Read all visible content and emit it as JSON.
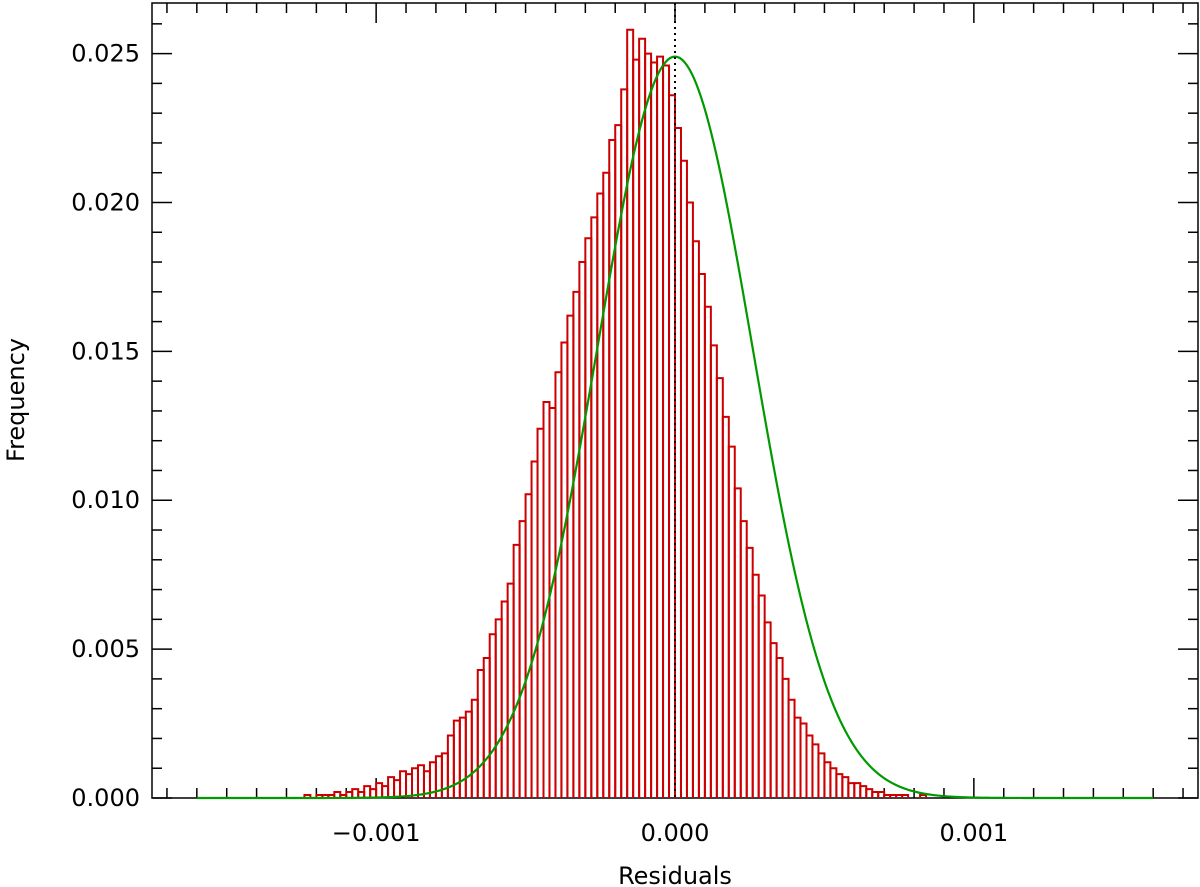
{
  "chart_data": {
    "type": "bar",
    "xlabel": "Residuals",
    "ylabel": "Frequency",
    "xlim": [
      -0.00175,
      0.00175
    ],
    "ylim": [
      0.0,
      0.0267
    ],
    "x_ticks": [
      {
        "value": -0.001,
        "label": "−0.001"
      },
      {
        "value": 0.0,
        "label": "0.000"
      },
      {
        "value": 0.001,
        "label": "0.001"
      }
    ],
    "y_ticks": [
      {
        "value": 0.0,
        "label": "0.000"
      },
      {
        "value": 0.005,
        "label": "0.005"
      },
      {
        "value": 0.01,
        "label": "0.010"
      },
      {
        "value": 0.015,
        "label": "0.015"
      },
      {
        "value": 0.02,
        "label": "0.020"
      },
      {
        "value": 0.025,
        "label": "0.025"
      }
    ],
    "histogram": {
      "color": "#cc0000",
      "bin_width": 2e-05,
      "bin_start": -0.0016,
      "values": [
        0.0,
        0.0,
        0.0,
        0.0,
        0.0,
        0.0,
        0.0,
        0.0,
        0.0,
        0.0,
        0.0,
        0.0,
        0.0,
        0.0,
        0.0,
        0.0,
        0.0,
        0.0,
        0.0001,
        0.0,
        0.0001,
        0.0001,
        0.0001,
        0.0002,
        0.0001,
        0.0002,
        0.0003,
        0.0002,
        0.0004,
        0.0003,
        0.0005,
        0.0004,
        0.0007,
        0.0006,
        0.0009,
        0.0008,
        0.001,
        0.0011,
        0.0009,
        0.0012,
        0.0014,
        0.0015,
        0.0021,
        0.0026,
        0.0027,
        0.0029,
        0.0033,
        0.0043,
        0.0047,
        0.0055,
        0.006,
        0.0066,
        0.0072,
        0.0085,
        0.0093,
        0.0102,
        0.0113,
        0.0124,
        0.0133,
        0.0131,
        0.0143,
        0.0153,
        0.0162,
        0.017,
        0.018,
        0.0188,
        0.0195,
        0.0203,
        0.021,
        0.0221,
        0.0226,
        0.0238,
        0.0258,
        0.0248,
        0.0255,
        0.025,
        0.0247,
        0.0249,
        0.0246,
        0.0236,
        0.0225,
        0.0214,
        0.02,
        0.0187,
        0.0176,
        0.0165,
        0.0152,
        0.0141,
        0.0128,
        0.0118,
        0.0104,
        0.0093,
        0.0084,
        0.0075,
        0.0068,
        0.0059,
        0.0052,
        0.0047,
        0.004,
        0.0033,
        0.0027,
        0.0025,
        0.0021,
        0.0018,
        0.0015,
        0.0012,
        0.001,
        0.0008,
        0.0007,
        0.0005,
        0.0005,
        0.0004,
        0.0003,
        0.0002,
        0.0002,
        0.0001,
        0.0001,
        0.0001,
        0.0001,
        0.0,
        0.0,
        0.0001,
        0.0,
        0.0,
        0.0,
        0.0,
        0.0,
        0.0,
        0.0,
        0.0,
        0.0,
        0.0,
        0.0,
        0.0,
        0.0,
        0.0,
        0.0,
        0.0,
        0.0,
        0.0,
        0.0,
        0.0,
        0.0,
        0.0,
        0.0,
        0.0,
        0.0,
        0.0,
        0.0,
        0.0,
        0.0,
        0.0,
        0.0,
        0.0,
        0.0,
        0.0,
        0.0,
        0.0,
        0.0,
        0.0,
        0.0,
        0.0
      ]
    },
    "fit_curve": {
      "type": "gaussian",
      "color": "#009900",
      "amplitude": 0.0249,
      "mean": 0.0,
      "sigma": 0.00026,
      "x_range": [
        -0.0016,
        0.0016
      ]
    },
    "reference_line": {
      "x": 0.0,
      "style": "dotted",
      "color": "#000000"
    },
    "grid": false,
    "legend": "none"
  }
}
